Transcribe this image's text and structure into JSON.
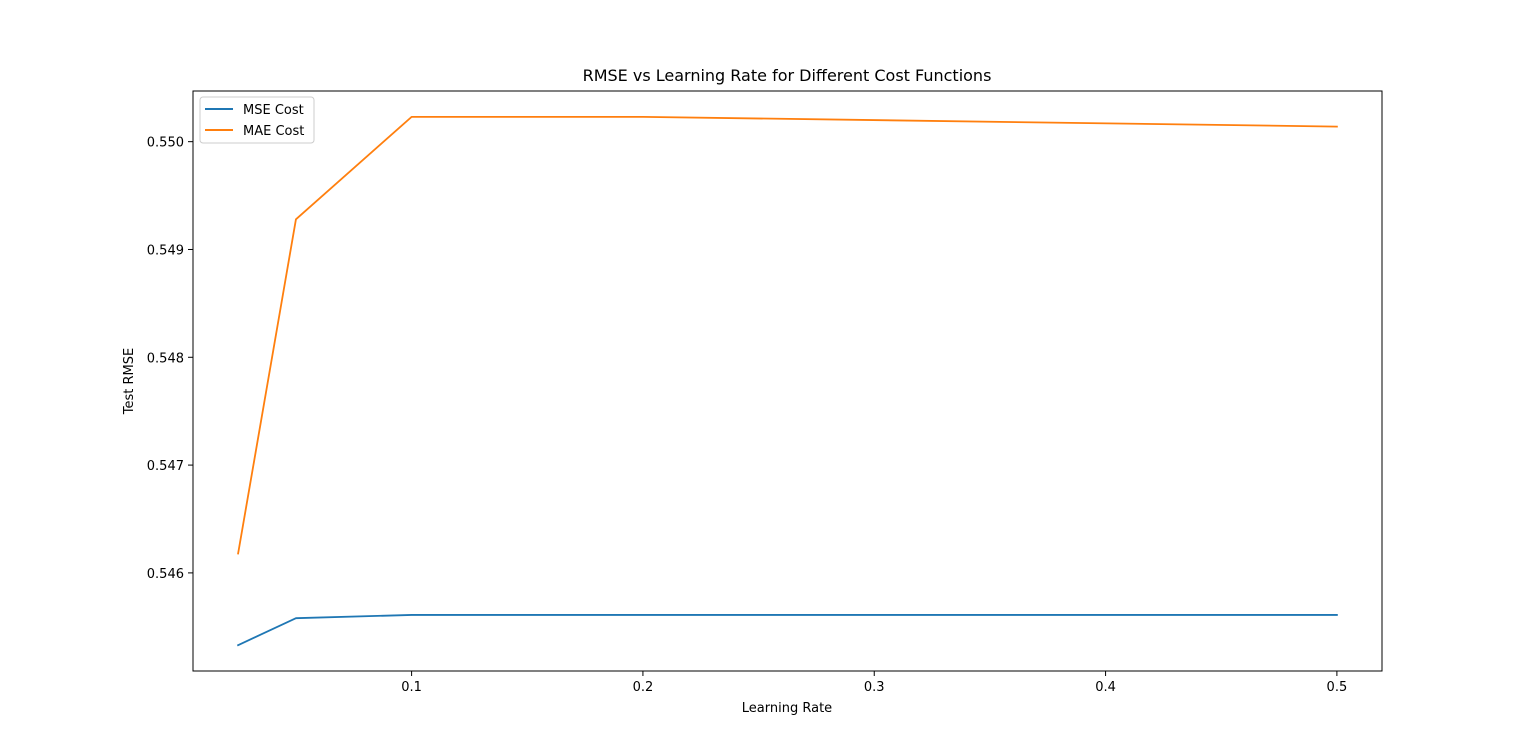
{
  "chart_data": {
    "type": "line",
    "title": "RMSE vs Learning Rate for Different Cost Functions",
    "xlabel": "Learning Rate",
    "ylabel": "Test RMSE",
    "x": [
      0.025,
      0.05,
      0.1,
      0.2,
      0.5
    ],
    "xlim": [
      0.0055,
      0.5195
    ],
    "ylim": [
      0.54509,
      0.55047
    ],
    "xticks": [
      0.1,
      0.2,
      0.3,
      0.4,
      0.5
    ],
    "xtick_labels": [
      "0.1",
      "0.2",
      "0.3",
      "0.4",
      "0.5"
    ],
    "yticks": [
      0.546,
      0.547,
      0.548,
      0.549,
      0.55
    ],
    "ytick_labels": [
      "0.546",
      "0.547",
      "0.548",
      "0.549",
      "0.550"
    ],
    "grid": false,
    "legend_position": "top-left",
    "series": [
      {
        "name": "MSE Cost",
        "color": "#1f77b4",
        "values": [
          0.54533,
          0.54558,
          0.54561,
          0.54561,
          0.54561
        ]
      },
      {
        "name": "MAE Cost",
        "color": "#ff7f0e",
        "values": [
          0.54618,
          0.54928,
          0.55023,
          0.55023,
          0.55014
        ]
      }
    ]
  }
}
